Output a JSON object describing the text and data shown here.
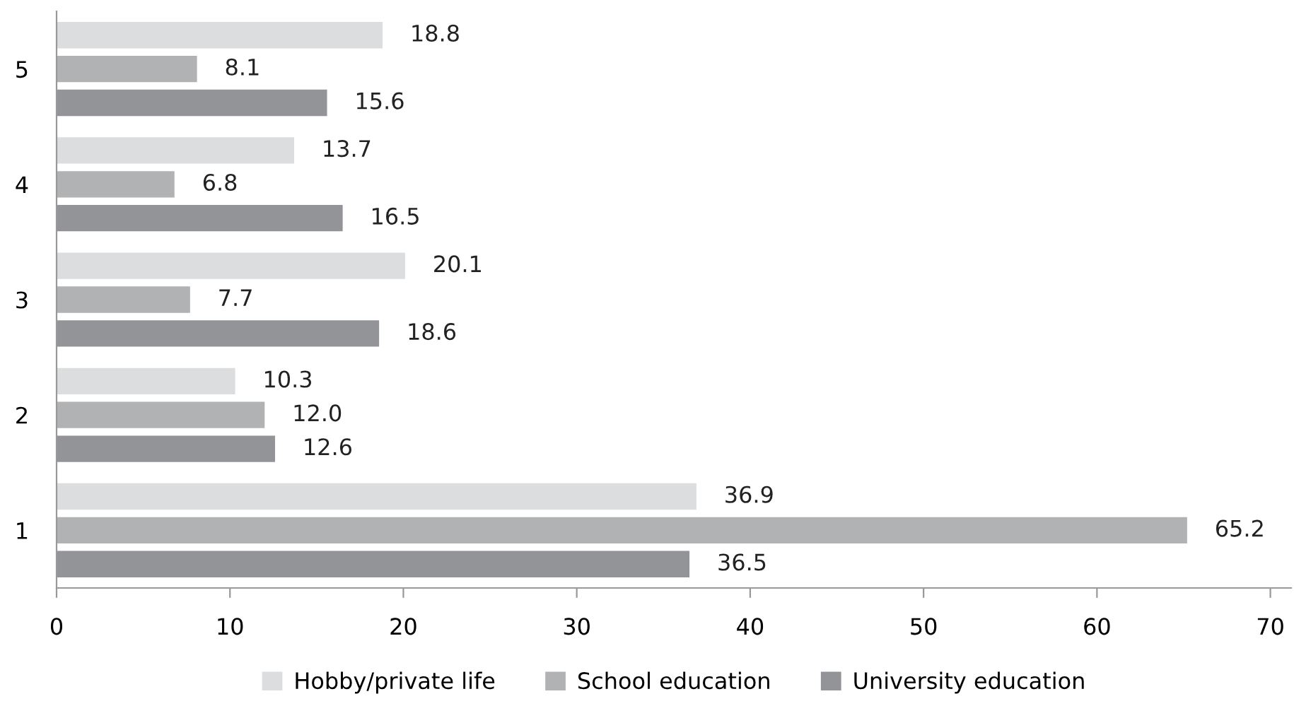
{
  "chart_data": {
    "type": "bar",
    "orientation": "horizontal",
    "categories": [
      "5",
      "4",
      "3",
      "2",
      "1"
    ],
    "series": [
      {
        "name": "Hobby/private life",
        "color": "#dcdddf",
        "values": [
          18.8,
          13.7,
          20.1,
          10.3,
          36.9
        ]
      },
      {
        "name": "School education",
        "color": "#b1b2b4",
        "values": [
          8.1,
          6.8,
          7.7,
          12.0,
          65.2
        ]
      },
      {
        "name": "University education",
        "color": "#939497",
        "values": [
          15.6,
          16.5,
          18.6,
          12.6,
          36.5
        ]
      }
    ],
    "value_labels": [
      [
        "18.8",
        "13.7",
        "20.1",
        "10.3",
        "36.9"
      ],
      [
        "8.1",
        "6.8",
        "7.7",
        "12.0",
        "65.2"
      ],
      [
        "15.6",
        "16.5",
        "18.6",
        "12.6",
        "36.5"
      ]
    ],
    "xlim": [
      0,
      71.2
    ],
    "xticks": [
      0,
      10,
      20,
      30,
      40,
      50,
      60,
      70
    ],
    "grid": false,
    "legend": "bottom"
  }
}
